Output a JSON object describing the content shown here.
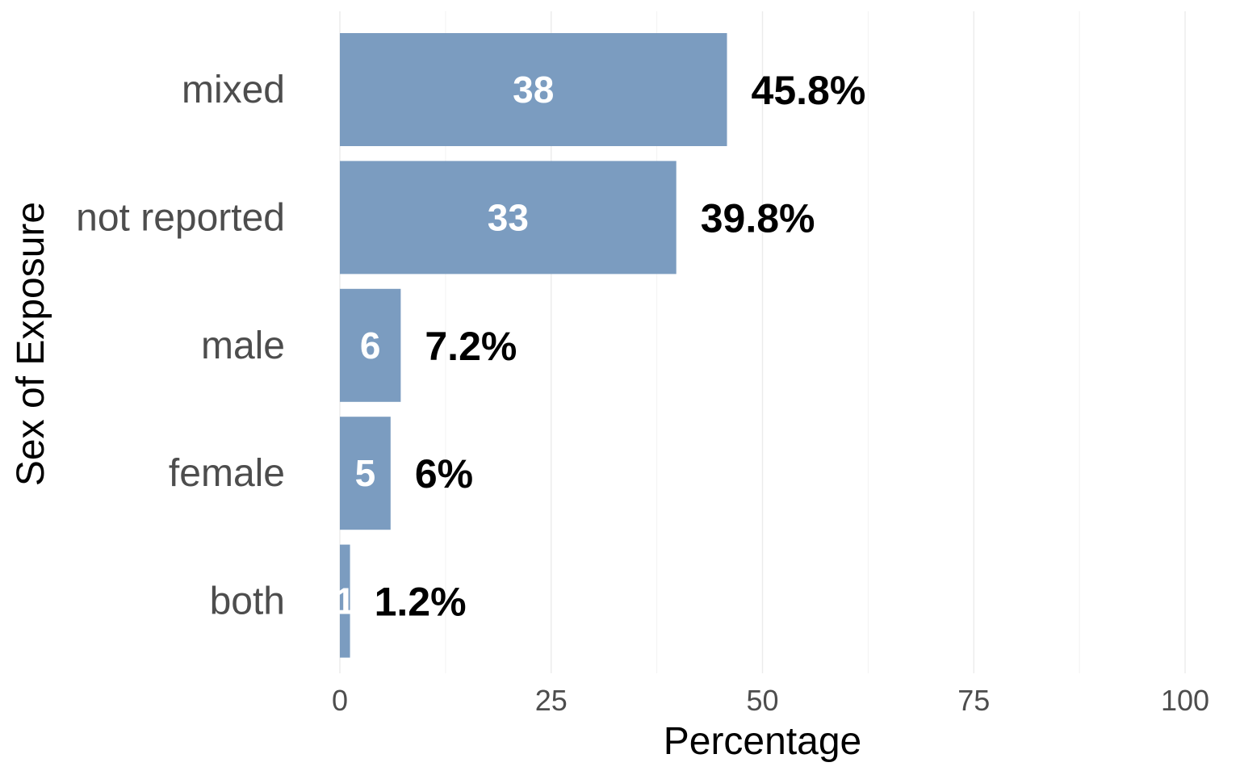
{
  "chart_data": {
    "type": "bar",
    "orientation": "horizontal",
    "categories": [
      "mixed",
      "not reported",
      "male",
      "female",
      "both"
    ],
    "counts": [
      "38",
      "33",
      "6",
      "5",
      "1"
    ],
    "values": [
      45.8,
      39.8,
      7.2,
      6.0,
      1.2
    ],
    "value_labels": [
      "45.8%",
      "39.8%",
      "7.2%",
      "6%",
      "1.2%"
    ],
    "xlabel": "Percentage",
    "ylabel": "Sex of Exposure",
    "xlim": [
      0,
      100
    ],
    "x_ticks": [
      0,
      25,
      50,
      75,
      100
    ],
    "x_tick_labels": [
      "0",
      "25",
      "50",
      "75",
      "100"
    ],
    "grid": true,
    "bar_color": "#7b9cc0",
    "count_label_color": "#ffffff"
  }
}
